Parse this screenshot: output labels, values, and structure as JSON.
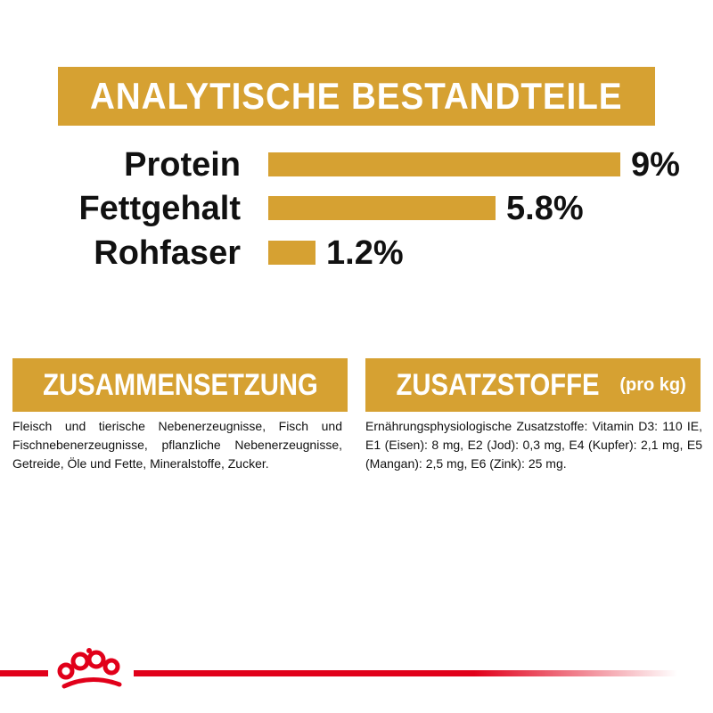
{
  "title": "ANALYTISCHE BESTANDTEILE",
  "analysis": [
    {
      "label": "Protein",
      "value_text": "9%",
      "value": 9
    },
    {
      "label": "Fettgehalt",
      "value_text": "5.8%",
      "value": 5.8
    },
    {
      "label": "Rohfaser",
      "value_text": "1.2%",
      "value": 1.2
    }
  ],
  "composition": {
    "heading": "ZUSAMMENSETZUNG",
    "text": "Fleisch und tierische Nebenerzeugnisse, Fisch und Fischnebenerzeugnisse, pflanzliche Nebenerzeugnisse, Getreide, Öle und Fette, Mineralstoffe, Zucker."
  },
  "additives": {
    "heading": "ZUSATZSTOFFE",
    "heading_suffix": "(pro kg)",
    "text": "Ernährungsphysiologische Zusatzstoffe: Vitamin D3: 110 IE, E1 (Eisen): 8 mg, E2 (Jod): 0,3 mg, E4 (Kupfer): 2,1 mg, E5 (Mangan): 2,5 mg, E6 (Zink): 25 mg."
  },
  "colors": {
    "accent": "#d6a132",
    "brand_red": "#e1001a",
    "text": "#111111",
    "background": "#ffffff"
  },
  "icons": {
    "logo": "royal-canin-crown-icon"
  }
}
